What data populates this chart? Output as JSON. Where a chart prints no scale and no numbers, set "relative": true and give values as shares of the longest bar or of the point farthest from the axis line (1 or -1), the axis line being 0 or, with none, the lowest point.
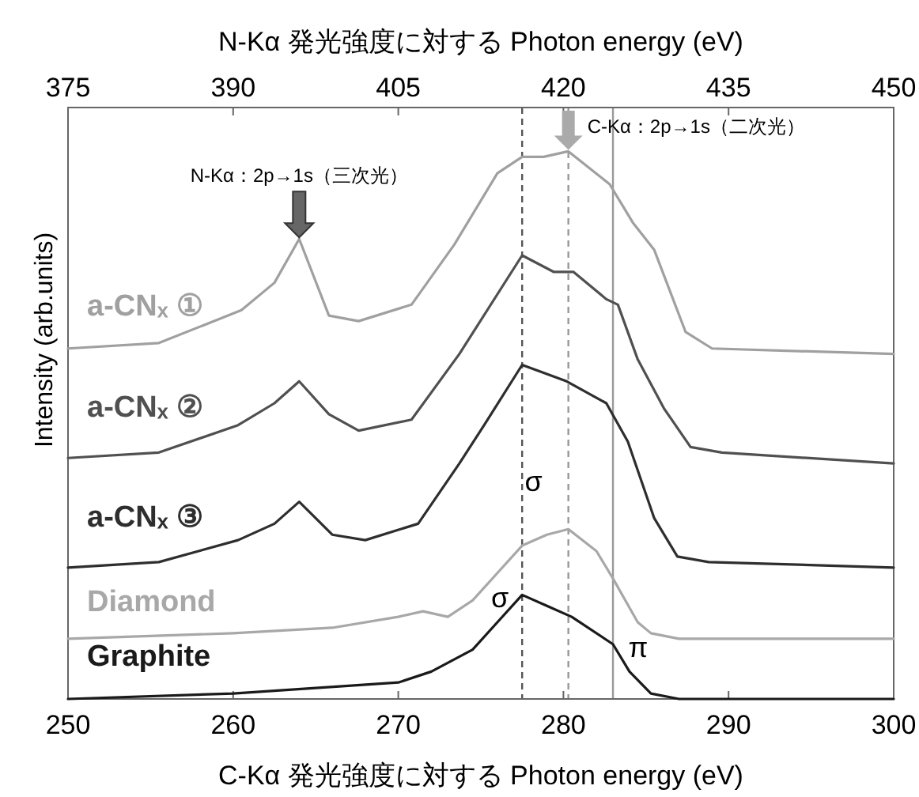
{
  "chart_data": {
    "type": "line",
    "relative": true,
    "xlabel": "C-Kα 発光強度に対する Photon energy (eV)",
    "x2label": "N-Kα 発光強度に対する Photon energy (eV)",
    "ylabel": "Intensity (arb.units)",
    "xlim": [
      250,
      300
    ],
    "xticks": [
      250,
      260,
      270,
      280,
      290,
      300
    ],
    "x2lim": [
      375,
      450
    ],
    "x2ticks": [
      375,
      390,
      405,
      420,
      435,
      450
    ],
    "series": [
      {
        "name": "a-CNₓ ①",
        "color": "#a0a0a0",
        "x": [
          250,
          255.5,
          260.5,
          262.5,
          264,
          265.8,
          267.6,
          270.8,
          273.4,
          276,
          277.5,
          278.8,
          280.3,
          282.8,
          284.2,
          285.5,
          287.4,
          289,
          300
        ],
        "values": [
          0.64,
          0.65,
          0.71,
          0.76,
          0.84,
          0.7,
          0.69,
          0.72,
          0.83,
          0.96,
          0.99,
          0.99,
          1.0,
          0.94,
          0.87,
          0.82,
          0.67,
          0.64,
          0.63
        ]
      },
      {
        "name": "a-CNₓ ②",
        "color": "#505050",
        "x": [
          250,
          255.5,
          260.3,
          262.5,
          264,
          265.8,
          267.6,
          270.8,
          273.7,
          277.5,
          279.4,
          280.6,
          282.6,
          283.3,
          284.5,
          286.1,
          287.7,
          289.6,
          300
        ],
        "values": [
          0.44,
          0.45,
          0.5,
          0.54,
          0.58,
          0.52,
          0.49,
          0.51,
          0.63,
          0.81,
          0.78,
          0.78,
          0.73,
          0.72,
          0.62,
          0.53,
          0.46,
          0.45,
          0.43
        ]
      },
      {
        "name": "a-CNₓ ③",
        "color": "#2e2e2e",
        "x": [
          250,
          255.5,
          260.3,
          262.5,
          264,
          266,
          268,
          271.2,
          273.7,
          275.2,
          277.5,
          280.2,
          282.6,
          283.9,
          285.5,
          286.9,
          288.8,
          300
        ],
        "values": [
          0.24,
          0.25,
          0.29,
          0.32,
          0.36,
          0.3,
          0.29,
          0.32,
          0.43,
          0.5,
          0.61,
          0.58,
          0.54,
          0.47,
          0.33,
          0.26,
          0.25,
          0.24
        ]
      },
      {
        "name": "Diamond",
        "color": "#a8a8a8",
        "x": [
          250,
          260,
          266,
          270,
          271.5,
          273,
          274.5,
          276,
          277.5,
          279,
          280.3,
          282,
          283,
          284.5,
          285.3,
          287,
          300
        ],
        "values": [
          0.11,
          0.12,
          0.13,
          0.15,
          0.16,
          0.15,
          0.18,
          0.23,
          0.28,
          0.3,
          0.31,
          0.27,
          0.22,
          0.14,
          0.12,
          0.11,
          0.11
        ]
      },
      {
        "name": "Graphite",
        "color": "#1a1a1a",
        "x": [
          250,
          260,
          265,
          270,
          272,
          274.5,
          276,
          277.5,
          279,
          280.5,
          283,
          284,
          285.3,
          287,
          300
        ],
        "values": [
          0,
          0.01,
          0.02,
          0.03,
          0.05,
          0.09,
          0.14,
          0.19,
          0.17,
          0.15,
          0.1,
          0.05,
          0.01,
          0,
          0
        ]
      }
    ],
    "ref_lines": [
      {
        "axis": "x",
        "value": 277.5,
        "color": "#555555",
        "line_style": "dashed"
      },
      {
        "axis": "x",
        "value": 280.3,
        "color": "#999999",
        "line_style": "dashed"
      },
      {
        "axis": "x",
        "value": 283,
        "color": "#999999",
        "line_style": "solid"
      }
    ],
    "annotations": [
      {
        "text": "N-Kα：2p→1s（三次光）",
        "x": 264,
        "y": 0.84
      },
      {
        "text": "C-Kα：2p→1s（二次光）",
        "x": 280.3,
        "y": 1.0
      },
      {
        "text": "σ",
        "x": 280.3,
        "y": 0.31
      },
      {
        "text": "σ",
        "x": 277.5,
        "y": 0.19
      },
      {
        "text": "π",
        "x": 283,
        "y": 0.1
      }
    ],
    "line_style": "solid",
    "marker": "none"
  }
}
